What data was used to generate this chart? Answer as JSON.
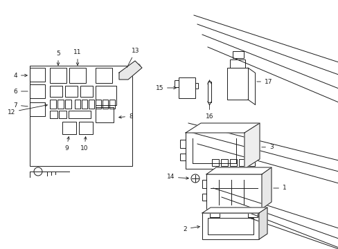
{
  "bg_color": "#ffffff",
  "line_color": "#1a1a1a",
  "fig_width": 4.89,
  "fig_height": 3.6,
  "dpi": 100,
  "car_lines_upper": [
    [
      [
        2.55,
        3.55
      ],
      [
        4.89,
        2.95
      ]
    ],
    [
      [
        2.62,
        3.42
      ],
      [
        4.89,
        2.78
      ]
    ],
    [
      [
        2.7,
        3.28
      ],
      [
        4.89,
        2.6
      ]
    ],
    [
      [
        2.8,
        3.12
      ],
      [
        4.89,
        2.44
      ]
    ]
  ],
  "car_lines_mid": [
    [
      [
        2.55,
        2.5
      ],
      [
        4.89,
        1.95
      ]
    ],
    [
      [
        2.65,
        2.38
      ],
      [
        4.89,
        1.82
      ]
    ],
    [
      [
        2.75,
        2.25
      ],
      [
        4.89,
        1.68
      ]
    ]
  ],
  "car_lines_lower": [
    [
      [
        2.9,
        1.6
      ],
      [
        4.89,
        1.05
      ]
    ],
    [
      [
        3.05,
        1.45
      ],
      [
        4.89,
        0.88
      ]
    ],
    [
      [
        3.25,
        1.3
      ],
      [
        4.89,
        0.7
      ]
    ],
    [
      [
        3.45,
        1.12
      ],
      [
        4.89,
        0.52
      ]
    ],
    [
      [
        3.65,
        0.92
      ],
      [
        4.89,
        0.35
      ]
    ]
  ]
}
